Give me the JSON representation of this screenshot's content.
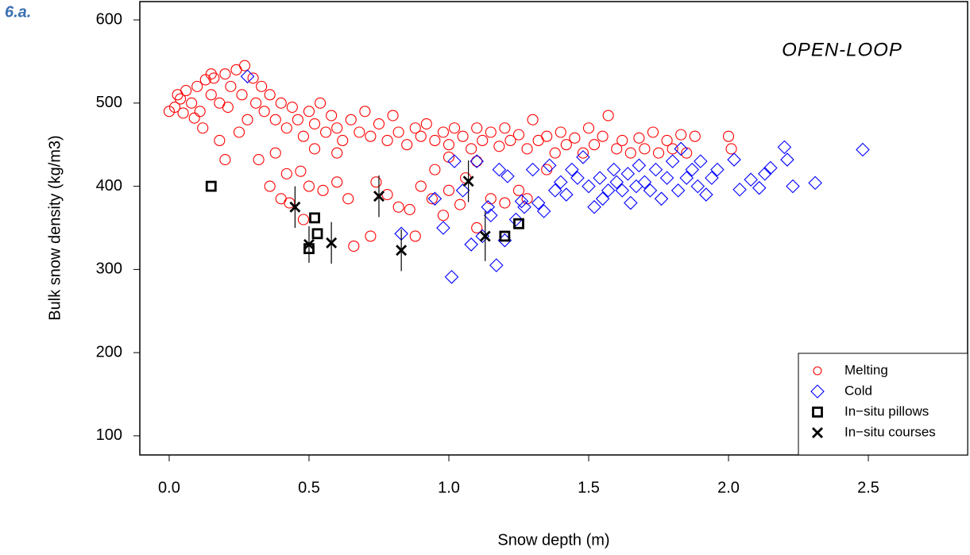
{
  "chart_data": {
    "type": "scatter",
    "panel_label": "6.a.",
    "annotation": "OPEN-LOOP",
    "x_label": "Snow depth (m)",
    "y_label": "Bulk snow density (kg/m3)",
    "xlim": [
      -0.105,
      2.855
    ],
    "ylim": [
      77,
      622
    ],
    "xticks": [
      {
        "value": 0,
        "label": "0.0"
      },
      0.5,
      {
        "value": 1,
        "label": "1.0"
      },
      1.5,
      {
        "value": 2,
        "label": "2.0"
      },
      2.5
    ],
    "yticks": [
      100,
      200,
      300,
      400,
      500,
      600
    ],
    "legend": "bottom-right",
    "series": [
      {
        "name": "Melting",
        "color": "#ff0000",
        "marker": "circle",
        "x": [
          0.0,
          0.02,
          0.04,
          0.05,
          0.06,
          0.08,
          0.1,
          0.11,
          0.13,
          0.15,
          0.16,
          0.18,
          0.2,
          0.21,
          0.22,
          0.24,
          0.26,
          0.27,
          0.28,
          0.3,
          0.31,
          0.33,
          0.34,
          0.36,
          0.38,
          0.4,
          0.42,
          0.44,
          0.46,
          0.48,
          0.5,
          0.52,
          0.54,
          0.56,
          0.58,
          0.6,
          0.62,
          0.65,
          0.68,
          0.7,
          0.72,
          0.75,
          0.78,
          0.8,
          0.82,
          0.85,
          0.88,
          0.9,
          0.92,
          0.95,
          0.98,
          1.0,
          1.02,
          1.05,
          1.08,
          1.1,
          1.12,
          1.15,
          1.18,
          1.2,
          1.22,
          1.25,
          1.28,
          1.3,
          1.32,
          1.35,
          1.38,
          1.4,
          1.42,
          1.45,
          1.48,
          1.5,
          1.52,
          1.55,
          1.57,
          1.6,
          1.62,
          1.65,
          1.68,
          1.7,
          1.73,
          1.75,
          1.78,
          1.8,
          1.83,
          1.85,
          1.88,
          2.0,
          2.01,
          0.18,
          0.2,
          0.32,
          0.36,
          0.38,
          0.4,
          0.42,
          0.43,
          0.47,
          0.48,
          0.5,
          0.55,
          0.6,
          0.64,
          0.66,
          0.72,
          0.74,
          0.78,
          0.82,
          0.86,
          0.88,
          0.9,
          0.94,
          0.98,
          1.0,
          1.04,
          1.06,
          1.1,
          1.15,
          1.2,
          1.25,
          1.28,
          1.35,
          0.15,
          0.03,
          0.09,
          0.25,
          0.12,
          0.6,
          0.52,
          1.1,
          0.95,
          1.0
        ],
        "y": [
          490,
          495,
          505,
          488,
          515,
          500,
          520,
          490,
          528,
          510,
          530,
          500,
          535,
          495,
          520,
          540,
          510,
          545,
          480,
          530,
          500,
          520,
          490,
          510,
          480,
          500,
          470,
          495,
          480,
          460,
          490,
          475,
          500,
          465,
          485,
          470,
          455,
          480,
          465,
          490,
          460,
          475,
          455,
          485,
          465,
          450,
          470,
          460,
          475,
          455,
          465,
          450,
          470,
          460,
          445,
          470,
          455,
          465,
          448,
          470,
          455,
          462,
          445,
          480,
          455,
          460,
          440,
          465,
          450,
          458,
          440,
          470,
          450,
          460,
          485,
          445,
          455,
          440,
          458,
          445,
          465,
          440,
          455,
          445,
          462,
          440,
          460,
          460,
          445,
          455,
          432,
          432,
          400,
          440,
          385,
          415,
          380,
          418,
          360,
          400,
          395,
          405,
          385,
          328,
          340,
          405,
          390,
          375,
          372,
          340,
          400,
          385,
          365,
          395,
          378,
          410,
          350,
          385,
          380,
          395,
          385,
          420,
          535,
          510,
          482,
          465,
          470,
          440,
          445,
          430,
          420,
          435
        ]
      },
      {
        "name": "Cold",
        "color": "#0000ff",
        "marker": "diamond",
        "x": [
          0.28,
          0.95,
          0.98,
          1.01,
          1.05,
          1.08,
          1.1,
          1.12,
          1.14,
          1.15,
          1.17,
          1.18,
          1.2,
          1.21,
          1.24,
          1.27,
          1.3,
          1.32,
          1.34,
          1.36,
          1.38,
          1.4,
          1.42,
          1.44,
          1.46,
          1.48,
          1.5,
          1.52,
          1.54,
          1.55,
          1.57,
          1.59,
          1.6,
          1.62,
          1.64,
          1.65,
          1.67,
          1.68,
          1.7,
          1.72,
          1.74,
          1.76,
          1.78,
          1.8,
          1.82,
          1.83,
          1.85,
          1.87,
          1.89,
          1.9,
          1.92,
          1.94,
          1.96,
          2.02,
          2.04,
          2.08,
          2.11,
          2.13,
          2.15,
          2.2,
          2.21,
          2.23,
          2.31,
          2.48,
          0.83,
          1.02,
          1.26
        ],
        "y": [
          532,
          385,
          350,
          291,
          395,
          330,
          430,
          340,
          375,
          365,
          305,
          420,
          335,
          412,
          360,
          375,
          420,
          380,
          370,
          425,
          395,
          405,
          390,
          420,
          410,
          435,
          400,
          375,
          410,
          385,
          395,
          420,
          405,
          395,
          415,
          380,
          400,
          425,
          405,
          395,
          420,
          385,
          410,
          430,
          395,
          445,
          410,
          420,
          400,
          430,
          390,
          410,
          420,
          432,
          396,
          408,
          398,
          415,
          422,
          447,
          432,
          400,
          404,
          444,
          343,
          430,
          382
        ]
      },
      {
        "name": "In−situ pillows",
        "color": "#000000",
        "marker": "square",
        "x": [
          0.15,
          0.5,
          0.52,
          0.53,
          1.2,
          1.25
        ],
        "y": [
          400,
          325,
          362,
          343,
          340,
          355
        ]
      },
      {
        "name": "In−situ courses",
        "color": "#000000",
        "marker": "cross",
        "x": [
          0.45,
          0.5,
          0.58,
          0.75,
          0.83,
          1.07,
          1.13
        ],
        "y": [
          375,
          330,
          332,
          388,
          323,
          406,
          340
        ],
        "error": [
          25,
          22,
          25,
          25,
          25,
          25,
          30
        ]
      }
    ]
  }
}
